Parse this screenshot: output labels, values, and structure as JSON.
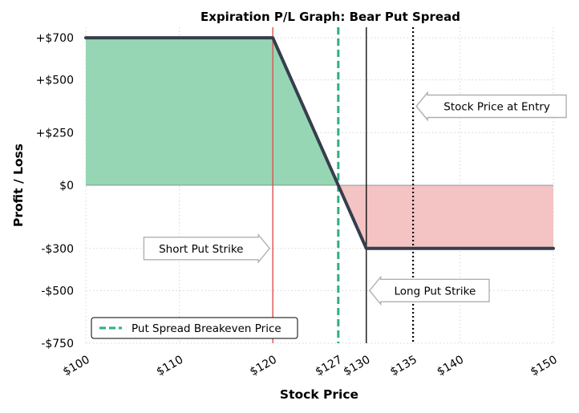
{
  "chart_data": {
    "type": "line",
    "title": "Expiration P/L Graph: Bear Put Spread",
    "xlabel": "Stock Price",
    "ylabel": "Profit / Loss",
    "xlim": [
      100,
      150
    ],
    "ylim": [
      -750,
      750
    ],
    "x_ticks": [
      100,
      110,
      120,
      127,
      130,
      135,
      140,
      150
    ],
    "x_tick_labels": [
      "$100",
      "$110",
      "$120",
      "$127",
      "$130",
      "$135",
      "$140",
      "$150"
    ],
    "y_ticks": [
      700,
      500,
      250,
      0,
      -300,
      -500,
      -750
    ],
    "y_tick_labels": [
      "+$700",
      "+$500",
      "+$250",
      "$0",
      "-$300",
      "-$500",
      "-$750"
    ],
    "grid": true,
    "legend_position": "lower-left",
    "series": [
      {
        "x": [
          100,
          120,
          127,
          130,
          150
        ],
        "y": [
          700,
          700,
          0,
          -300,
          -300
        ]
      }
    ],
    "reference_lines": [
      {
        "x": 120,
        "style": "solid",
        "color": "#d9534f"
      },
      {
        "x": 127,
        "style": "dashed",
        "color": "#2eaf7d",
        "legend": "Put Spread Breakeven Price"
      },
      {
        "x": 130,
        "style": "solid",
        "color": "#000000"
      },
      {
        "x": 135,
        "style": "dotted",
        "color": "#000000"
      }
    ],
    "annotations": [
      {
        "text": "Short Put Strike",
        "x": 120,
        "y": -300,
        "arrow": "right"
      },
      {
        "text": "Long Put Strike",
        "x": 130,
        "y": -500,
        "arrow": "left"
      },
      {
        "text": "Stock Price at Entry",
        "x": 135,
        "y": 375,
        "arrow": "left"
      }
    ],
    "colors": {
      "profit_fill": "#96d6b4",
      "loss_fill": "#f4c3c3",
      "pl_line": "#353e4c",
      "breakeven": "#2eaf7d",
      "short_strike": "#d9534f",
      "grid": "#d5d5d5"
    }
  }
}
